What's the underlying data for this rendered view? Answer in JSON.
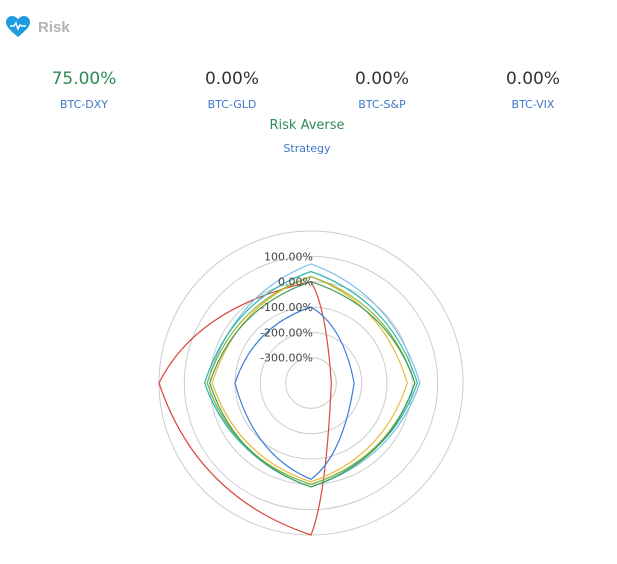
{
  "panel": {
    "title": "Risk",
    "icon": "heart-pulse-icon",
    "accent_color": "#1e9ae0"
  },
  "metrics": [
    {
      "value": "75.00%",
      "label": "BTC-DXY",
      "highlight": true
    },
    {
      "value": "0.00%",
      "label": "BTC-GLD",
      "highlight": false
    },
    {
      "value": "0.00%",
      "label": "BTC-S&P",
      "highlight": false
    },
    {
      "value": "0.00%",
      "label": "BTC-VIX",
      "highlight": false
    }
  ],
  "profile": {
    "name": "Risk Averse",
    "subtitle": "Strategy"
  },
  "chart_data": {
    "type": "radar",
    "axis": {
      "ticks": [
        "100.00%",
        "0.00%",
        "-100.00%",
        "-200.00%",
        "-300.00%"
      ],
      "tick_values": [
        100,
        0,
        -100,
        -200,
        -300
      ],
      "range": [
        -400,
        200
      ]
    },
    "grid": true,
    "series": [
      {
        "color": "#d9473f",
        "values": [
          0,
          -320,
          200,
          200
        ]
      },
      {
        "color": "#7fbfe8",
        "values": [
          70,
          30,
          10,
          10
        ]
      },
      {
        "color": "#2fb7b0",
        "values": [
          40,
          20,
          0,
          20
        ]
      },
      {
        "color": "#e9b93a",
        "values": [
          20,
          -20,
          -10,
          -10
        ]
      },
      {
        "color": "#8fb83c",
        "values": [
          20,
          10,
          0,
          10
        ]
      },
      {
        "color": "#3f9e5a",
        "values": [
          0,
          10,
          10,
          0
        ]
      },
      {
        "color": "#3a7fd6",
        "values": [
          -100,
          -230,
          -20,
          -100
        ]
      }
    ]
  }
}
